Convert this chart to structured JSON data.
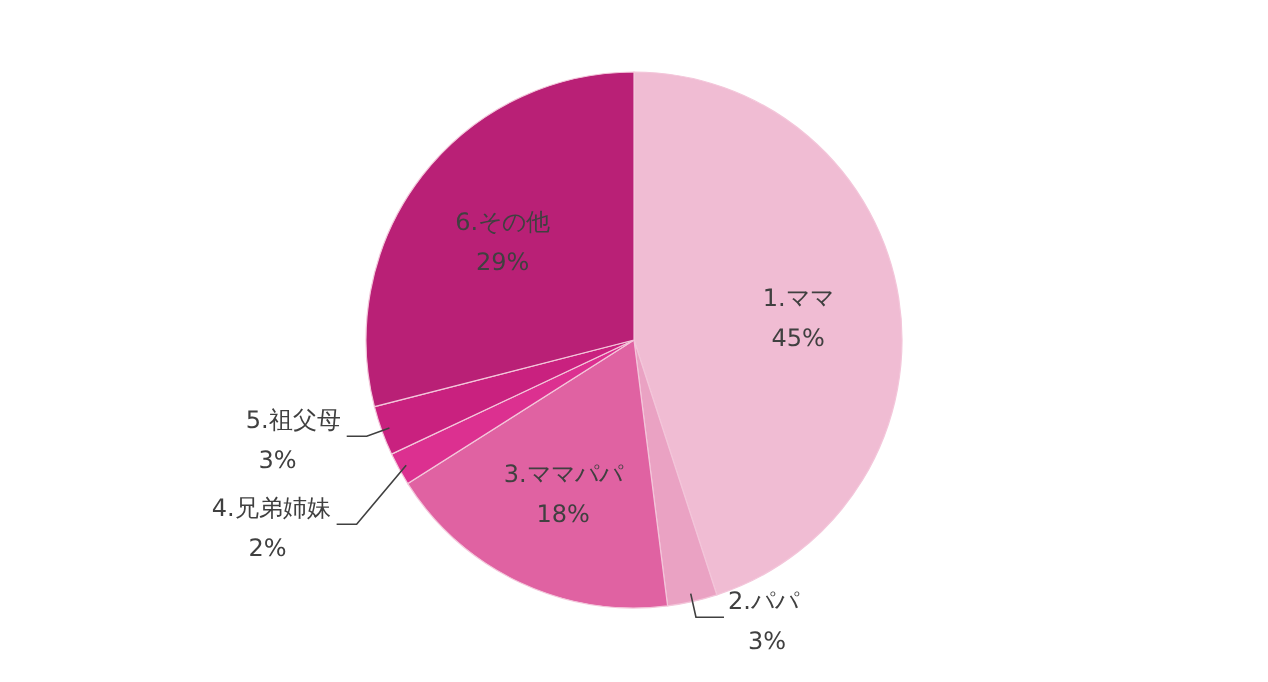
{
  "chart_data": {
    "type": "pie",
    "categories": [
      "1.ママ",
      "2.パパ",
      "3.ママパパ",
      "4.兄弟姉妹",
      "5.祖父母",
      "6.その他"
    ],
    "values": [
      45,
      3,
      18,
      2,
      3,
      29
    ],
    "value_labels": [
      "45%",
      "3%",
      "18%",
      "2%",
      "3%",
      "29%"
    ],
    "colors": [
      "#f0bcd3",
      "#eaa2c3",
      "#e062a2",
      "#dc3090",
      "#c9217f",
      "#b92076"
    ]
  }
}
